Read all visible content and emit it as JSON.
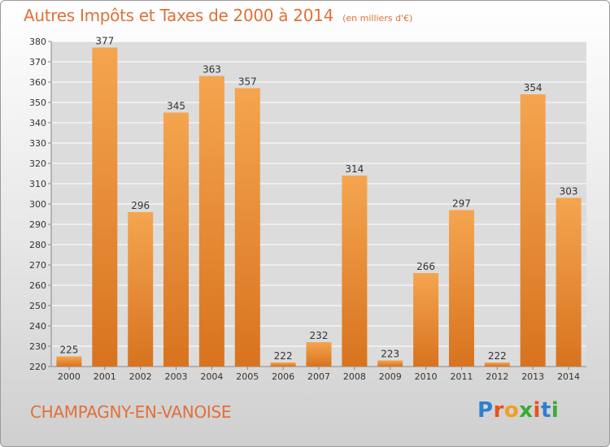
{
  "header": {
    "title": "Autres Impôts et Taxes de 2000 à 2014",
    "unit": "(en milliers d'€)"
  },
  "footer": {
    "place": "CHAMPAGNY-EN-VANOISE",
    "logo_letters": [
      "P",
      "r",
      "o",
      "x",
      "i",
      "t",
      "i"
    ],
    "logo_colors": [
      "#2f7fd0",
      "#e8501e",
      "#f0a020",
      "#3aaa35",
      "#e8501e",
      "#2f7fd0",
      "#3aaa35"
    ]
  },
  "chart_data": {
    "type": "bar",
    "title": "Autres Impôts et Taxes de 2000 à 2014",
    "subtitle": "(en milliers d'€)",
    "xlabel": "",
    "ylabel": "",
    "categories": [
      "2000",
      "2001",
      "2002",
      "2003",
      "2004",
      "2005",
      "2006",
      "2007",
      "2008",
      "2009",
      "2010",
      "2011",
      "2012",
      "2013",
      "2014"
    ],
    "values": [
      225,
      377,
      296,
      345,
      363,
      357,
      222,
      232,
      314,
      223,
      266,
      297,
      222,
      354,
      303
    ],
    "ylim": [
      220,
      380
    ],
    "ytick_step": 10,
    "grid": "horizontal",
    "legend": "none",
    "colors": {
      "bar_light": "#f5a54f",
      "bar_dark": "#d8731f",
      "grid": "#ffffff",
      "text": "#333333",
      "title": "#e0703a"
    }
  }
}
